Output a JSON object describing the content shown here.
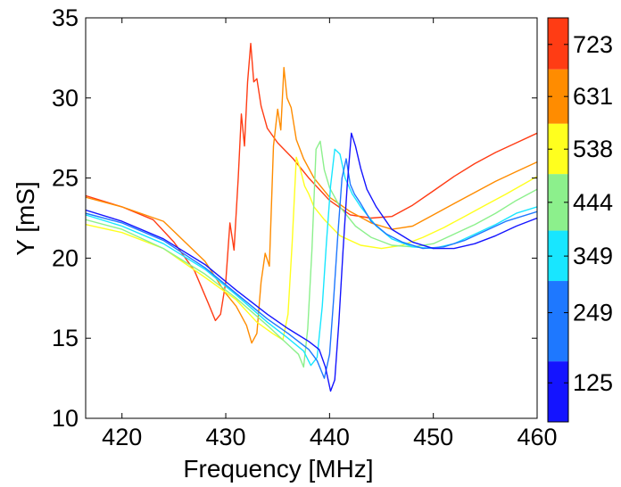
{
  "chart_data": {
    "type": "line",
    "title": "",
    "xlabel": "Frequency [MHz]",
    "ylabel": "Y [mS]",
    "xlim": [
      416.5,
      460
    ],
    "ylim": [
      10,
      35
    ],
    "xticks": [
      "420",
      "430",
      "440",
      "450",
      "460"
    ],
    "yticks": [
      "10",
      "15",
      "20",
      "25",
      "30",
      "35"
    ],
    "grid": false,
    "colorbar": {
      "range": [
        56,
        770
      ],
      "ticks": [
        "125",
        "249",
        "349",
        "444",
        "538",
        "631",
        "723"
      ],
      "tick_values": [
        125,
        249,
        349,
        444,
        538,
        631,
        723
      ],
      "bands": [
        {
          "from": 56,
          "to": 163,
          "color": "#1414ff"
        },
        {
          "from": 163,
          "to": 305,
          "color": "#1e78ff"
        },
        {
          "from": 305,
          "to": 394,
          "color": "#18e6ff"
        },
        {
          "from": 394,
          "to": 494,
          "color": "#8cf08c"
        },
        {
          "from": 494,
          "to": 583,
          "color": "#ffff1e"
        },
        {
          "from": 583,
          "to": 679,
          "color": "#ff8c00"
        },
        {
          "from": 679,
          "to": 770,
          "color": "#ff3c14"
        }
      ]
    },
    "series": [
      {
        "color": "#ff3c14",
        "x": [
          416.5,
          420,
          423,
          425,
          427,
          428.3,
          429,
          429.5,
          430,
          430.4,
          430.8,
          431.2,
          431.5,
          431.8,
          432.1,
          432.4,
          432.7,
          433,
          433.4,
          434,
          435,
          436.5,
          438,
          440,
          442,
          444,
          446,
          448,
          450,
          452,
          454,
          456,
          458,
          460
        ],
        "y": [
          23.9,
          23.2,
          22.4,
          21,
          19.2,
          17.2,
          16.1,
          16.5,
          18.5,
          22.2,
          20.5,
          25,
          29,
          27,
          31,
          33.4,
          31,
          31.2,
          29.5,
          28.1,
          27.2,
          26.2,
          25,
          23.6,
          22.7,
          22.5,
          22.6,
          23.3,
          24.2,
          25.1,
          25.9,
          26.6,
          27.2,
          27.8
        ]
      },
      {
        "color": "#ff8c00",
        "x": [
          416.5,
          420,
          424,
          428,
          430,
          431,
          432,
          432.5,
          433,
          433.4,
          433.8,
          434.2,
          434.6,
          435,
          435.3,
          435.6,
          435.9,
          436.3,
          436.8,
          437.5,
          438.5,
          440,
          442,
          444,
          446,
          448,
          450,
          452,
          454,
          456,
          458,
          460
        ],
        "y": [
          23.8,
          23.2,
          22.3,
          19.8,
          17.8,
          17,
          15.8,
          14.7,
          15.3,
          18.5,
          20.3,
          19.5,
          27,
          29.3,
          28,
          31.9,
          30,
          29.4,
          27.4,
          26.2,
          25,
          23.8,
          22.9,
          22.2,
          21.8,
          22,
          22.7,
          23.4,
          24.1,
          24.8,
          25.4,
          26
        ]
      },
      {
        "color": "#ffff1e",
        "x": [
          416.5,
          420,
          424,
          428,
          431,
          433,
          434.5,
          435.5,
          436,
          436.4,
          436.8,
          437.2,
          437.6,
          438,
          438.5,
          439.5,
          441,
          443,
          445,
          447,
          449,
          451,
          453,
          455,
          457,
          460
        ],
        "y": [
          22.1,
          21.6,
          20.6,
          18.8,
          17.4,
          16,
          15.3,
          14.9,
          16.5,
          21,
          26.3,
          25.5,
          24.5,
          24,
          23.2,
          22.4,
          21.4,
          20.8,
          20.6,
          20.8,
          21.3,
          21.9,
          22.6,
          23.3,
          24,
          25.1
        ]
      },
      {
        "color": "#8cf08c",
        "x": [
          416.5,
          420,
          424,
          428,
          431,
          434,
          436,
          437,
          437.5,
          437.9,
          438.3,
          438.7,
          439.1,
          439.5,
          440,
          441,
          442.5,
          444,
          446,
          448,
          450,
          452,
          454,
          456,
          458,
          460
        ],
        "y": [
          22.4,
          21.8,
          20.6,
          19,
          17.5,
          15.8,
          14.6,
          14,
          13.2,
          15.6,
          20.5,
          26.8,
          27.3,
          25.5,
          24.4,
          23.2,
          22,
          21.3,
          20.8,
          20.7,
          20.9,
          21.5,
          22.1,
          22.8,
          23.6,
          24.3
        ]
      },
      {
        "color": "#18e6ff",
        "x": [
          416.5,
          420,
          424,
          428,
          431,
          434,
          436,
          437.5,
          438.2,
          438.8,
          439.3,
          439.7,
          440.1,
          440.5,
          441,
          441.5,
          442.2,
          443,
          444.5,
          446,
          448,
          450,
          452,
          454,
          456,
          458,
          460
        ],
        "y": [
          22.7,
          22,
          20.9,
          19.3,
          17.7,
          16,
          15,
          14.2,
          13.3,
          13.8,
          17,
          21,
          24.5,
          26.8,
          26.5,
          25,
          24,
          23.2,
          22,
          21.2,
          20.7,
          20.6,
          20.9,
          21.5,
          22.1,
          22.8,
          23.2
        ]
      },
      {
        "color": "#1e78ff",
        "x": [
          416.5,
          420,
          424,
          428,
          431,
          434,
          436,
          438,
          438.8,
          439.5,
          440,
          440.4,
          440.8,
          441.2,
          441.6,
          442,
          442.4,
          443,
          444,
          445.5,
          447,
          449,
          451,
          453,
          455,
          457,
          460
        ],
        "y": [
          22.8,
          22.2,
          21.1,
          19.4,
          17.8,
          16.2,
          15.3,
          14.3,
          13.6,
          12.5,
          14,
          17.5,
          21.5,
          25,
          26.2,
          24.6,
          24,
          23.4,
          22.3,
          21.5,
          21,
          20.6,
          20.7,
          21.1,
          21.7,
          22.3,
          22.9
        ]
      },
      {
        "color": "#1414ff",
        "x": [
          416.5,
          420,
          424,
          428,
          431,
          434,
          436,
          438,
          439,
          439.6,
          440.1,
          440.5,
          440.9,
          441.3,
          441.7,
          442.1,
          442.5,
          443,
          443.6,
          444.5,
          446,
          448,
          450,
          452,
          454,
          456,
          458,
          460
        ],
        "y": [
          23,
          22.3,
          21.2,
          19.6,
          18,
          16.5,
          15.6,
          14.8,
          14.3,
          13.2,
          11.7,
          12.4,
          16,
          20.5,
          24.5,
          27.8,
          27,
          25.6,
          24.3,
          23.2,
          21.8,
          21,
          20.6,
          20.6,
          20.9,
          21.4,
          22,
          22.5
        ]
      }
    ]
  }
}
